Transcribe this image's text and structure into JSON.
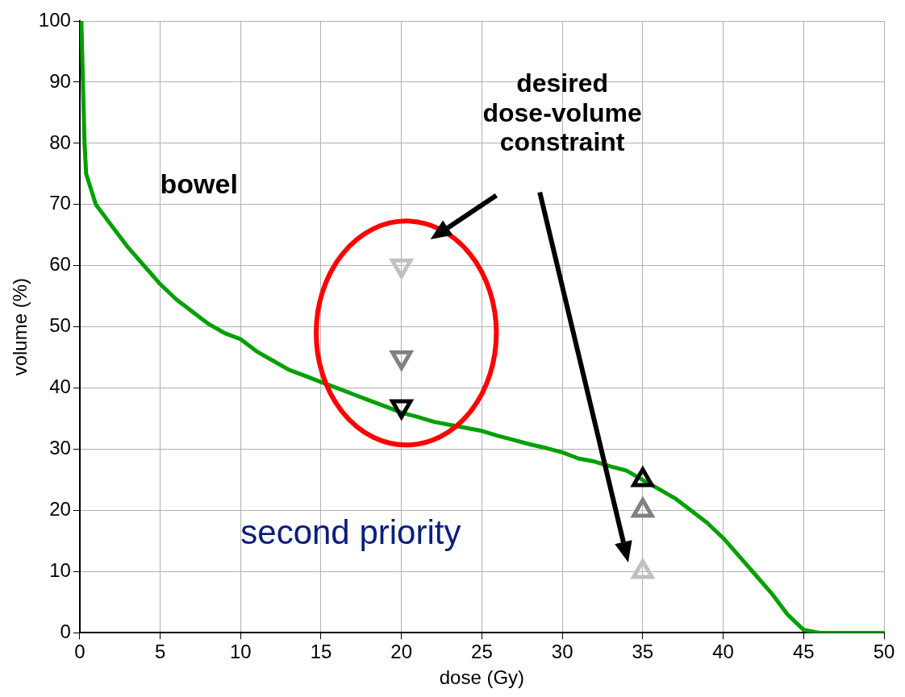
{
  "chart_data": {
    "type": "line",
    "xlabel": "dose (Gy)",
    "ylabel": "volume (%)",
    "xlim": [
      0,
      50
    ],
    "xticks": [
      0,
      5,
      10,
      15,
      20,
      25,
      30,
      35,
      40,
      45,
      50
    ],
    "ylim": [
      0,
      100
    ],
    "yticks": [
      0,
      10,
      20,
      30,
      40,
      50,
      60,
      70,
      80,
      90,
      100
    ],
    "grid": true,
    "legend": false,
    "annotations": [
      "bowel",
      "second priority",
      "desired dose-volume constraint"
    ],
    "series": [
      {
        "type": "line",
        "color": "#00a000",
        "marker": "none",
        "line_style": "solid",
        "x": [
          0.1,
          0.2,
          0.3,
          0.4,
          1,
          2,
          3,
          4,
          5,
          6,
          7,
          8,
          9,
          10,
          11,
          12,
          13,
          14,
          15,
          16,
          17,
          18,
          19,
          20,
          21,
          22,
          23,
          24,
          25,
          26,
          27,
          28,
          29,
          30,
          31,
          32,
          33,
          34,
          35,
          36,
          37,
          38,
          39,
          40,
          41,
          42,
          43,
          44,
          45,
          46,
          50
        ],
        "values": [
          100,
          90,
          80,
          75,
          70,
          66.5,
          63,
          60,
          57,
          54.5,
          52.5,
          50.5,
          49,
          48,
          46,
          44.5,
          43,
          42,
          41,
          40,
          39,
          38,
          37,
          36,
          35.3,
          34.5,
          34,
          33.5,
          33,
          32.2,
          31.5,
          30.8,
          30.2,
          29.5,
          28.5,
          28,
          27.2,
          26.5,
          25,
          23.5,
          22,
          20,
          18,
          15.5,
          12.5,
          9.5,
          6.5,
          3,
          0.5,
          0,
          0
        ]
      },
      {
        "type": "scatter",
        "color": "#c0c0c0",
        "marker": "triangle-down",
        "x": [
          20
        ],
        "values": [
          60
        ]
      },
      {
        "type": "scatter",
        "color": "#808080",
        "marker": "triangle-down",
        "x": [
          20
        ],
        "values": [
          45
        ]
      },
      {
        "type": "scatter",
        "color": "#000000",
        "marker": "triangle-down",
        "x": [
          20
        ],
        "values": [
          37
        ]
      },
      {
        "type": "scatter",
        "color": "#000000",
        "marker": "triangle",
        "x": [
          35
        ],
        "values": [
          25
        ]
      },
      {
        "type": "scatter",
        "color": "#808080",
        "marker": "triangle",
        "x": [
          35
        ],
        "values": [
          20
        ]
      },
      {
        "type": "scatter",
        "color": "#c0c0c0",
        "marker": "triangle",
        "x": [
          35
        ],
        "values": [
          10
        ]
      }
    ]
  }
}
